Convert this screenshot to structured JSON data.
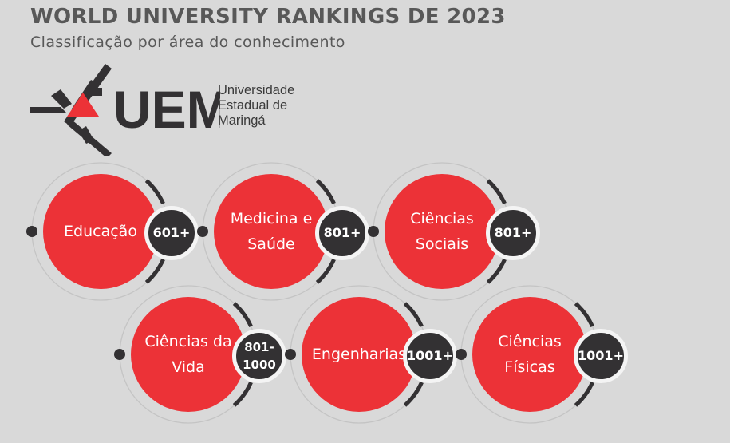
{
  "header": {
    "title": "WORLD UNIVERSITY RANKINGS DE 2023",
    "subtitle": "Classificação por área do conhecimento"
  },
  "logo": {
    "acronym": "UEM",
    "name_lines": [
      "Universidade",
      "Estadual de",
      "Maringá"
    ]
  },
  "colors": {
    "red": "#ec3237",
    "dark": "#333133",
    "background": "#d9d9d9"
  },
  "areas": [
    {
      "lines": [
        "Educação"
      ],
      "rank": "601+"
    },
    {
      "lines": [
        "Medicina e",
        "Saúde"
      ],
      "rank": "801+"
    },
    {
      "lines": [
        "Ciências",
        "Sociais"
      ],
      "rank": "801+"
    },
    {
      "lines": [
        "Ciências da",
        "Vida"
      ],
      "rank": "801-1000"
    },
    {
      "lines": [
        "Engenharias"
      ],
      "rank": "1001+"
    },
    {
      "lines": [
        "Ciências",
        "Físicas"
      ],
      "rank": "1001+"
    }
  ]
}
